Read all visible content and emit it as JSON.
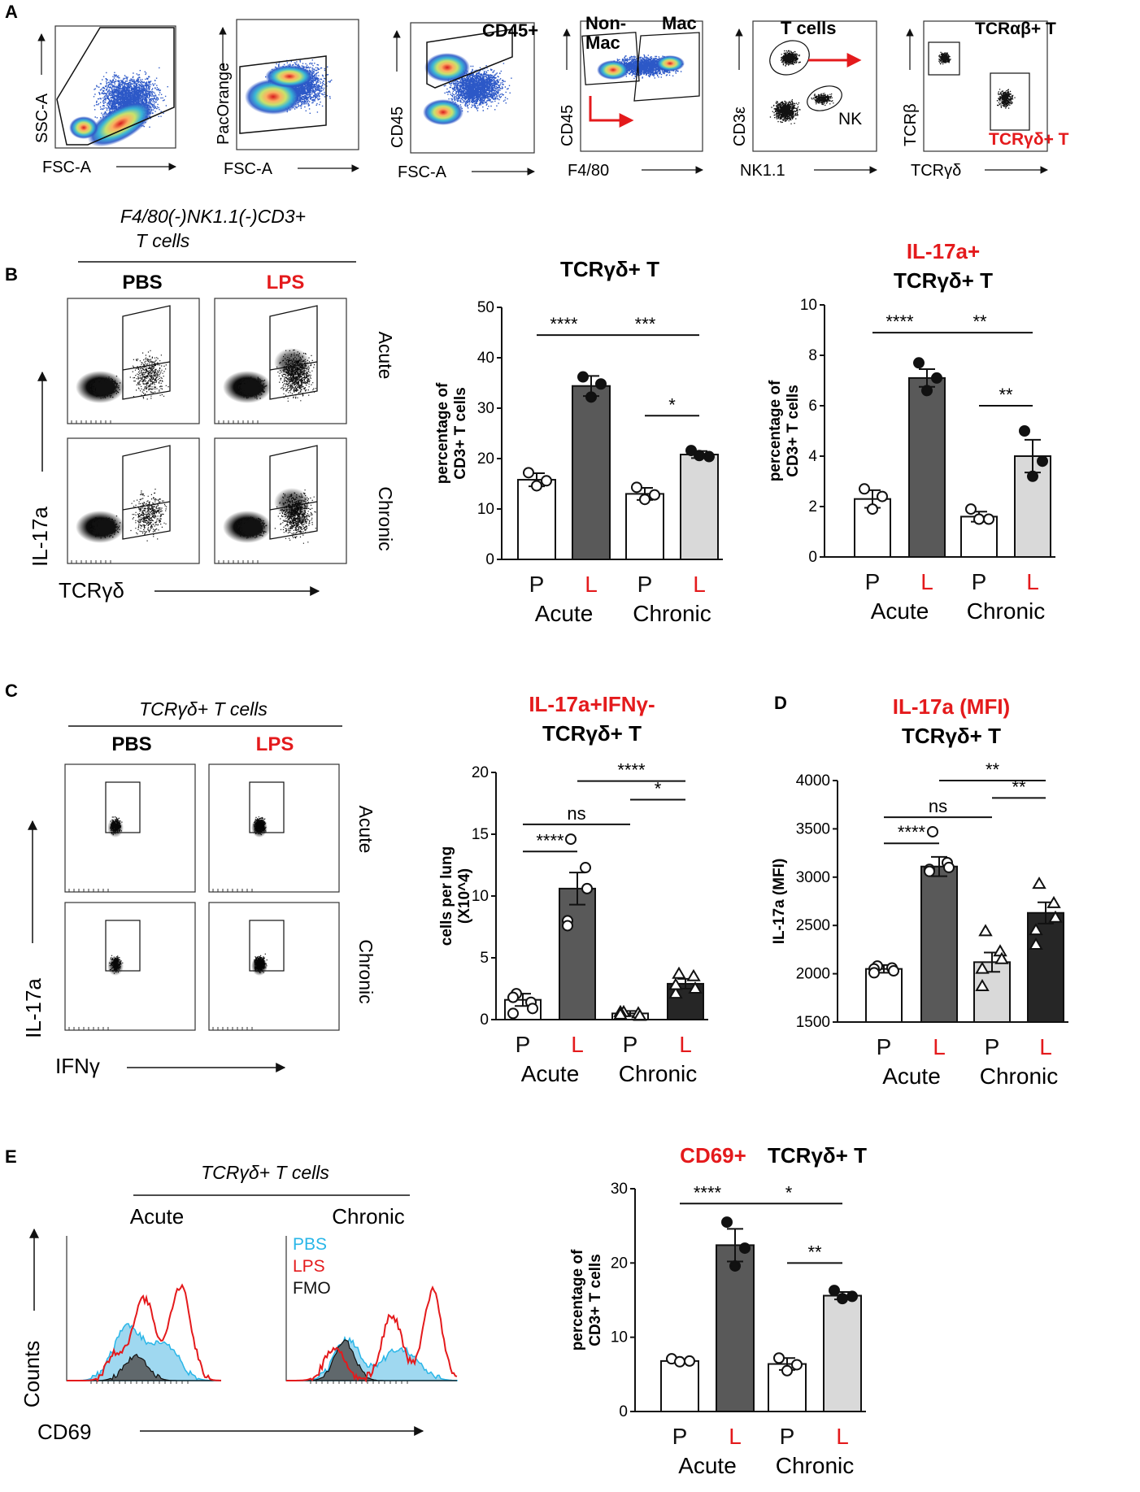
{
  "colors": {
    "red": "#e41a1c",
    "cyan": "#29b6e8",
    "bar_white": "#ffffff",
    "bar_dark": "#595959",
    "bar_light": "#d9d9d9",
    "bar_black": "#262626"
  },
  "panelA": {
    "letter": "A",
    "plots": [
      {
        "x": "FSC-A",
        "y": "SSC-A",
        "gates": []
      },
      {
        "x": "FSC-A",
        "y": "PacOrange",
        "gates": []
      },
      {
        "x": "FSC-A",
        "y": "CD45",
        "gates": [
          "CD45+"
        ]
      },
      {
        "x": "F4/80",
        "y": "CD45",
        "gates": [
          "Non-",
          "Mac",
          "Mac"
        ]
      },
      {
        "x": "NK1.1",
        "y": "CD3ε",
        "gates": [
          "T cells",
          "NK"
        ]
      },
      {
        "x": "TCRγδ",
        "y": "TCRβ",
        "gates": [
          "TCRαβ+ T",
          "TCRγδ+ T"
        ]
      }
    ]
  },
  "panelB": {
    "letter": "B",
    "header_line1": "F4/80(-)NK1.1(-)CD3+",
    "header_line2": "T cells",
    "col_pbs": "PBS",
    "col_lps": "LPS",
    "row_acute": "Acute",
    "row_chronic": "Chronic",
    "y_axis": "IL-17a",
    "x_axis": "TCRγδ"
  },
  "panelC": {
    "letter": "C",
    "header": "TCRγδ+ T cells",
    "col_pbs": "PBS",
    "col_lps": "LPS",
    "row_acute": "Acute",
    "row_chronic": "Chronic",
    "y_axis": "IL-17a",
    "x_axis": "IFNγ"
  },
  "panelD": {
    "letter": "D"
  },
  "panelE": {
    "letter": "E",
    "header": "TCRγδ+ T cells",
    "col_acute": "Acute",
    "col_chronic": "Chronic",
    "legend": [
      "PBS",
      "LPS",
      "FMO"
    ],
    "y_axis": "Counts",
    "x_axis": "CD69"
  },
  "chart_data": [
    {
      "id": "B1",
      "type": "bar",
      "title_red": "",
      "title_black": "TCRγδ+ T",
      "ylabel": "percentage of CD3+ T cells",
      "ylim": [
        0,
        50
      ],
      "yticks": [
        0,
        10,
        20,
        30,
        40,
        50
      ],
      "categories": [
        "P",
        "L",
        "P",
        "L"
      ],
      "groups": [
        "Acute",
        "Chronic"
      ],
      "values": [
        15.8,
        34.4,
        13.0,
        20.8
      ],
      "sem": [
        1.3,
        2.0,
        1.2,
        0.7
      ],
      "points": [
        [
          17.2,
          15.6,
          14.6
        ],
        [
          36.2,
          34.8,
          32.2
        ],
        [
          14.3,
          12.8,
          11.9
        ],
        [
          21.6,
          20.4,
          20.6
        ]
      ],
      "point_style": [
        "open-circle",
        "filled-circle",
        "open-circle",
        "filled-circle"
      ],
      "bar_fill": [
        "white",
        "dark",
        "white",
        "light"
      ],
      "sig": [
        {
          "from": 0,
          "to": 1,
          "label": "****",
          "y": 44.5
        },
        {
          "from": 1,
          "to": 3,
          "label": "***",
          "y": 44.5
        },
        {
          "from": 2,
          "to": 3,
          "label": "*",
          "y": 28.5
        }
      ]
    },
    {
      "id": "B2",
      "type": "bar",
      "title_red": "IL-17a+",
      "title_black": "TCRγδ+ T",
      "ylabel": "percentage of CD3+ T cells",
      "ylim": [
        0,
        10
      ],
      "yticks": [
        0,
        2,
        4,
        6,
        8,
        10
      ],
      "categories": [
        "P",
        "L",
        "P",
        "L"
      ],
      "groups": [
        "Acute",
        "Chronic"
      ],
      "values": [
        2.3,
        7.1,
        1.6,
        4.0
      ],
      "sem": [
        0.35,
        0.35,
        0.2,
        0.65
      ],
      "points": [
        [
          2.7,
          2.4,
          1.9
        ],
        [
          7.7,
          7.1,
          6.6
        ],
        [
          1.9,
          1.5,
          1.5
        ],
        [
          5.0,
          3.8,
          3.2
        ]
      ],
      "point_style": [
        "open-circle",
        "filled-circle",
        "open-circle",
        "filled-circle"
      ],
      "bar_fill": [
        "white",
        "dark",
        "white",
        "light"
      ],
      "sig": [
        {
          "from": 0,
          "to": 1,
          "label": "****",
          "y": 8.9
        },
        {
          "from": 1,
          "to": 3,
          "label": "**",
          "y": 8.9
        },
        {
          "from": 2,
          "to": 3,
          "label": "**",
          "y": 6.0
        }
      ]
    },
    {
      "id": "C1",
      "type": "bar",
      "title_red": "IL-17a+IFNγ-",
      "title_black": "TCRγδ+ T",
      "ylabel": "cells per lung (X10^4)",
      "ylim": [
        0,
        20
      ],
      "yticks": [
        0,
        5,
        10,
        15,
        20
      ],
      "categories": [
        "P",
        "L",
        "P",
        "L"
      ],
      "groups": [
        "Acute",
        "Chronic"
      ],
      "values": [
        1.6,
        10.6,
        0.5,
        2.9
      ],
      "sem": [
        0.5,
        1.3,
        0.2,
        0.4
      ],
      "points": [
        [
          2.1,
          1.4,
          0.9,
          1.8,
          0.5
        ],
        [
          14.6,
          12.3,
          10.6,
          8.0,
          7.6
        ],
        [
          0.6,
          0.5,
          0.3,
          0.6,
          0.4
        ],
        [
          3.7,
          3.5,
          2.5,
          2.1,
          2.8
        ]
      ],
      "point_style": [
        "open-circle",
        "open-circle",
        "open-triangle",
        "open-triangle"
      ],
      "bar_fill": [
        "white",
        "dark",
        "white",
        "black"
      ],
      "sig": [
        {
          "from": 0,
          "to": 2,
          "label": "ns",
          "y": 15.8
        },
        {
          "from": 0,
          "to": 1,
          "label": "****",
          "y": 13.6
        },
        {
          "from": 1,
          "to": 3,
          "label": "****",
          "y": 19.3
        },
        {
          "from": 2,
          "to": 3,
          "label": "*",
          "y": 17.8
        }
      ]
    },
    {
      "id": "D1",
      "type": "bar",
      "title_red": "IL-17a (MFI)",
      "title_black": "TCRγδ+ T",
      "ylabel": "IL-17a (MFI)",
      "ylim": [
        1500,
        4000
      ],
      "yticks": [
        1500,
        2000,
        2500,
        3000,
        3500,
        4000
      ],
      "categories": [
        "P",
        "L",
        "P",
        "L"
      ],
      "groups": [
        "Acute",
        "Chronic"
      ],
      "values": [
        2050,
        3110,
        2120,
        2630
      ],
      "sem": [
        40,
        100,
        100,
        110
      ],
      "points": [
        [
          2080,
          2060,
          2030,
          2050,
          2010
        ],
        [
          3470,
          3150,
          3100,
          3080,
          3060
        ],
        [
          2440,
          2230,
          2150,
          2050,
          1870
        ],
        [
          2930,
          2730,
          2580,
          2450,
          2300
        ]
      ],
      "point_style": [
        "open-circle",
        "open-circle",
        "open-triangle",
        "open-triangle"
      ],
      "bar_fill": [
        "white",
        "dark",
        "light",
        "black"
      ],
      "sig": [
        {
          "from": 0,
          "to": 2,
          "label": "ns",
          "y": 3620
        },
        {
          "from": 0,
          "to": 1,
          "label": "****",
          "y": 3350
        },
        {
          "from": 1,
          "to": 3,
          "label": "**",
          "y": 4000
        },
        {
          "from": 2,
          "to": 3,
          "label": "**",
          "y": 3820
        }
      ]
    },
    {
      "id": "E1",
      "type": "bar",
      "title_red": "CD69+",
      "title_black": "TCRγδ+ T",
      "ylabel": "percentage of CD3+ T cells",
      "ylim": [
        0,
        30
      ],
      "yticks": [
        0,
        10,
        20,
        30
      ],
      "categories": [
        "P",
        "L",
        "P",
        "L"
      ],
      "groups": [
        "Acute",
        "Chronic"
      ],
      "values": [
        6.8,
        22.4,
        6.4,
        15.6
      ],
      "sem": [
        0.2,
        2.2,
        0.8,
        0.5
      ],
      "points": [
        [
          7.1,
          6.8,
          6.7
        ],
        [
          25.5,
          22.0,
          19.6
        ],
        [
          7.2,
          6.3,
          5.5
        ],
        [
          16.3,
          15.5,
          15.2
        ]
      ],
      "point_style": [
        "open-circle",
        "filled-circle",
        "open-circle",
        "filled-circle"
      ],
      "bar_fill": [
        "white",
        "dark",
        "white",
        "light"
      ],
      "sig": [
        {
          "from": 0,
          "to": 1,
          "label": "****",
          "y": 28.0
        },
        {
          "from": 1,
          "to": 3,
          "label": "*",
          "y": 28.0
        },
        {
          "from": 2,
          "to": 3,
          "label": "**",
          "y": 20.0
        }
      ]
    }
  ]
}
